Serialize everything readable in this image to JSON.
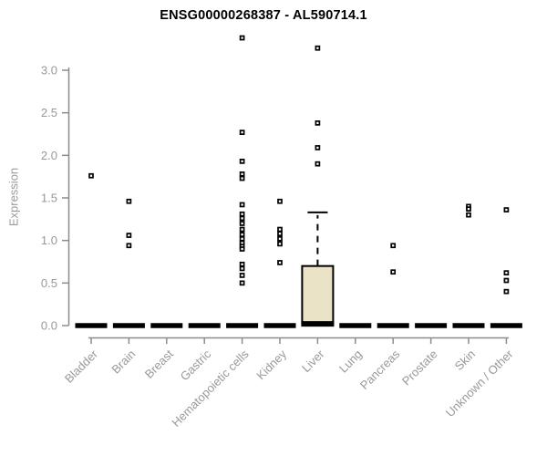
{
  "chart_data": {
    "type": "boxplot-with-points",
    "title": "ENSG00000268387 - AL590714.1",
    "xlabel": "",
    "ylabel": "Expression",
    "ylim": [
      0.0,
      3.0
    ],
    "yticks": [
      0.0,
      0.5,
      1.0,
      1.5,
      2.0,
      2.5,
      3.0
    ],
    "grid": false,
    "legend": "none",
    "point_style": "open-square",
    "categories": [
      "Bladder",
      "Brain",
      "Breast",
      "Gastric",
      "Hematopoietic cells",
      "Kidney",
      "Liver",
      "Lung",
      "Pancreas",
      "Prostate",
      "Skin",
      "Unknown / Other"
    ],
    "groups": [
      {
        "label": "Bladder",
        "points": [
          1.76
        ],
        "box": {
          "median": 0.0
        }
      },
      {
        "label": "Brain",
        "points": [
          1.46,
          1.06,
          0.94
        ],
        "box": {
          "median": 0.0
        }
      },
      {
        "label": "Breast",
        "points": [],
        "box": {
          "median": 0.0
        }
      },
      {
        "label": "Gastric",
        "points": [],
        "box": {
          "median": 0.0
        }
      },
      {
        "label": "Hematopoietic cells",
        "points": [
          3.38,
          2.27,
          1.93,
          1.78,
          1.73,
          1.42,
          1.31,
          1.26,
          1.2,
          1.13,
          1.07,
          1.02,
          0.97,
          0.93,
          0.9,
          0.72,
          0.67,
          0.59,
          0.5
        ],
        "box": {
          "median": 0.0
        }
      },
      {
        "label": "Kidney",
        "points": [
          1.46,
          1.13,
          1.08,
          1.02,
          0.96,
          0.74
        ],
        "box": {
          "median": 0.0
        }
      },
      {
        "label": "Liver",
        "points": [
          3.26,
          2.38,
          2.09,
          1.9
        ],
        "box": {
          "median": 0.02,
          "q1": 0.03,
          "q3": 0.7,
          "whisker_high": 1.33
        }
      },
      {
        "label": "Lung",
        "points": [],
        "box": {
          "median": 0.0
        }
      },
      {
        "label": "Pancreas",
        "points": [
          0.94,
          0.63
        ],
        "box": {
          "median": 0.0
        }
      },
      {
        "label": "Prostate",
        "points": [],
        "box": {
          "median": 0.0
        }
      },
      {
        "label": "Skin",
        "points": [
          1.4,
          1.37,
          1.3
        ],
        "box": {
          "median": 0.0
        }
      },
      {
        "label": "Unknown / Other",
        "points": [
          1.36,
          0.62,
          0.53,
          0.4
        ],
        "box": {
          "median": 0.0
        }
      }
    ],
    "colors": {
      "title": "#000000",
      "axis": "#8c8c8c",
      "tick_label": "#999999",
      "point_outline": "#000000",
      "point_fill": "#ffffff",
      "box_fill": "#eae3c5",
      "box_border": "#000000",
      "median_bar": "#000000",
      "background": "#ffffff"
    }
  }
}
